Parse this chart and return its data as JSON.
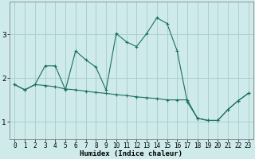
{
  "xlabel": "Humidex (Indice chaleur)",
  "background_color": "#ceeaea",
  "grid_color": "#aacfcf",
  "line_color": "#1a7060",
  "xlim": [
    -0.5,
    23.5
  ],
  "ylim": [
    0.6,
    3.75
  ],
  "yticks": [
    1,
    2,
    3
  ],
  "xticks": [
    0,
    1,
    2,
    3,
    4,
    5,
    6,
    7,
    8,
    9,
    10,
    11,
    12,
    13,
    14,
    15,
    16,
    17,
    18,
    19,
    20,
    21,
    22,
    23
  ],
  "line1_x": [
    0,
    1,
    2,
    3,
    4,
    5,
    6,
    7,
    8,
    9,
    10,
    11,
    12,
    13,
    14,
    15,
    16,
    17,
    18,
    19,
    20,
    21,
    22,
    23
  ],
  "line1_y": [
    1.85,
    1.73,
    1.85,
    2.28,
    2.28,
    1.73,
    2.62,
    2.42,
    2.25,
    1.73,
    3.02,
    2.83,
    2.72,
    3.02,
    3.38,
    3.25,
    2.62,
    1.45,
    1.08,
    1.03,
    1.03,
    1.28,
    1.48,
    1.65
  ],
  "line2_x": [
    0,
    1,
    2,
    3,
    4,
    5,
    6,
    7,
    8,
    9,
    10,
    11,
    12,
    13,
    14,
    15,
    16,
    17,
    18,
    19,
    20,
    21,
    22,
    23
  ],
  "line2_y": [
    1.85,
    1.73,
    1.85,
    1.83,
    1.8,
    1.75,
    1.73,
    1.7,
    1.67,
    1.65,
    1.62,
    1.6,
    1.57,
    1.55,
    1.53,
    1.5,
    1.5,
    1.5,
    1.08,
    1.03,
    1.03,
    1.28,
    1.48,
    1.65
  ],
  "xlabel_fontsize": 6.5,
  "tick_fontsize": 5.5,
  "ytick_fontsize": 6.5
}
